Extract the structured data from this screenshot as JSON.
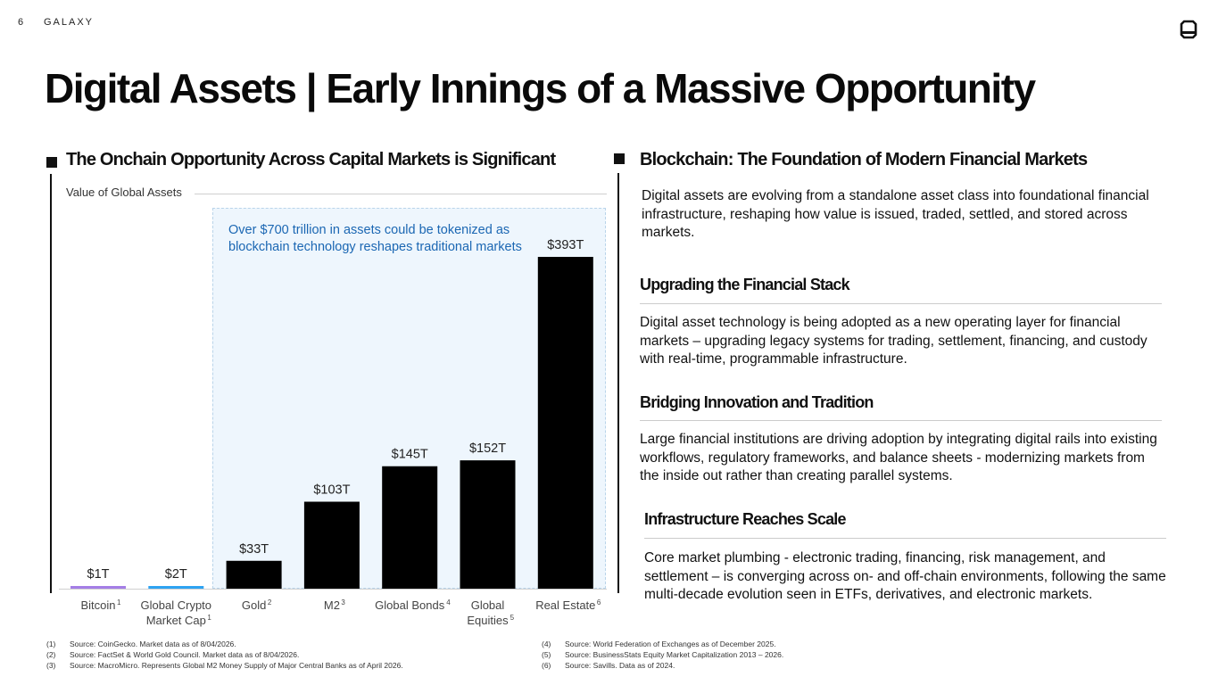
{
  "header": {
    "page_number": "6",
    "brand": "GALAXY",
    "logo_icon": "galaxy-logo-icon"
  },
  "title": "Digital Assets | Early Innings of a Massive Opportunity",
  "left_section": {
    "heading": "The Onchain Opportunity Across Capital Markets is Significant",
    "chart_label": "Value of Global Assets",
    "callout": "Over $700 trillion in assets could be tokenized as blockchain technology reshapes traditional markets"
  },
  "chart_data": {
    "type": "bar",
    "title": "Value of Global Assets",
    "categories": [
      "Bitcoin",
      "Global Crypto Market Cap",
      "Gold",
      "M2",
      "Global Bonds",
      "Global Equities",
      "Real Estate"
    ],
    "category_lines": [
      [
        "Bitcoin"
      ],
      [
        "Global Crypto",
        "Market Cap"
      ],
      [
        "Gold"
      ],
      [
        "M2"
      ],
      [
        "Global Bonds"
      ],
      [
        "Global",
        "Equities"
      ],
      [
        "Real Estate"
      ]
    ],
    "footnote_refs": [
      "1",
      "1",
      "2",
      "3",
      "4",
      "5",
      "6"
    ],
    "values": [
      1,
      2,
      33,
      103,
      145,
      152,
      393
    ],
    "value_labels": [
      "$1T",
      "$2T",
      "$33T",
      "$103T",
      "$145T",
      "$152T",
      "$393T"
    ],
    "unit": "trillion USD",
    "colors": [
      "#a47ee6",
      "#2ea3f2",
      "#000000",
      "#000000",
      "#000000",
      "#000000",
      "#000000"
    ],
    "highlight": {
      "from": "Gold",
      "to": "Real Estate",
      "color": "#eef6fd"
    },
    "ylim": [
      0,
      393
    ],
    "grid": false,
    "legend": "none"
  },
  "right_section": {
    "heading": "Blockchain: The Foundation of Modern Financial Markets",
    "intro": "Digital assets are evolving from a standalone asset class into foundational financial infrastructure, reshaping how value is issued, traded, settled, and stored across markets.",
    "subsections": [
      {
        "heading": "Upgrading the Financial Stack",
        "text": "Digital asset technology is being adopted as a new operating layer for financial markets – upgrading legacy systems for trading, settlement, financing, and custody with real-time, programmable infrastructure."
      },
      {
        "heading": "Bridging Innovation and Tradition",
        "text": "Large financial institutions are driving adoption by integrating digital rails into existing workflows, regulatory frameworks, and balance sheets - modernizing markets from the inside out rather than creating parallel systems."
      },
      {
        "heading": "Infrastructure Reaches Scale",
        "text": "Core market plumbing - electronic trading, financing, risk management, and settlement – is converging across on- and off-chain environments, following the same multi-decade evolution seen in ETFs, derivatives, and electronic markets."
      }
    ]
  },
  "footnotes": [
    {
      "num": "(1)",
      "text": "Source: CoinGecko. Market data as of 8/04/2026."
    },
    {
      "num": "(2)",
      "text": "Source: FactSet & World Gold Council. Market data as of 8/04/2026."
    },
    {
      "num": "(3)",
      "text": "Source: MacroMicro. Represents Global M2 Money Supply of Major Central Banks as of April 2026."
    },
    {
      "num": "(4)",
      "text": "Source: World Federation of Exchanges as of December 2025."
    },
    {
      "num": "(5)",
      "text": "Source: BusinessStats Equity Market Capitalization 2013 – 2026."
    },
    {
      "num": "(6)",
      "text": "Source: Savills. Data as of 2024."
    }
  ]
}
